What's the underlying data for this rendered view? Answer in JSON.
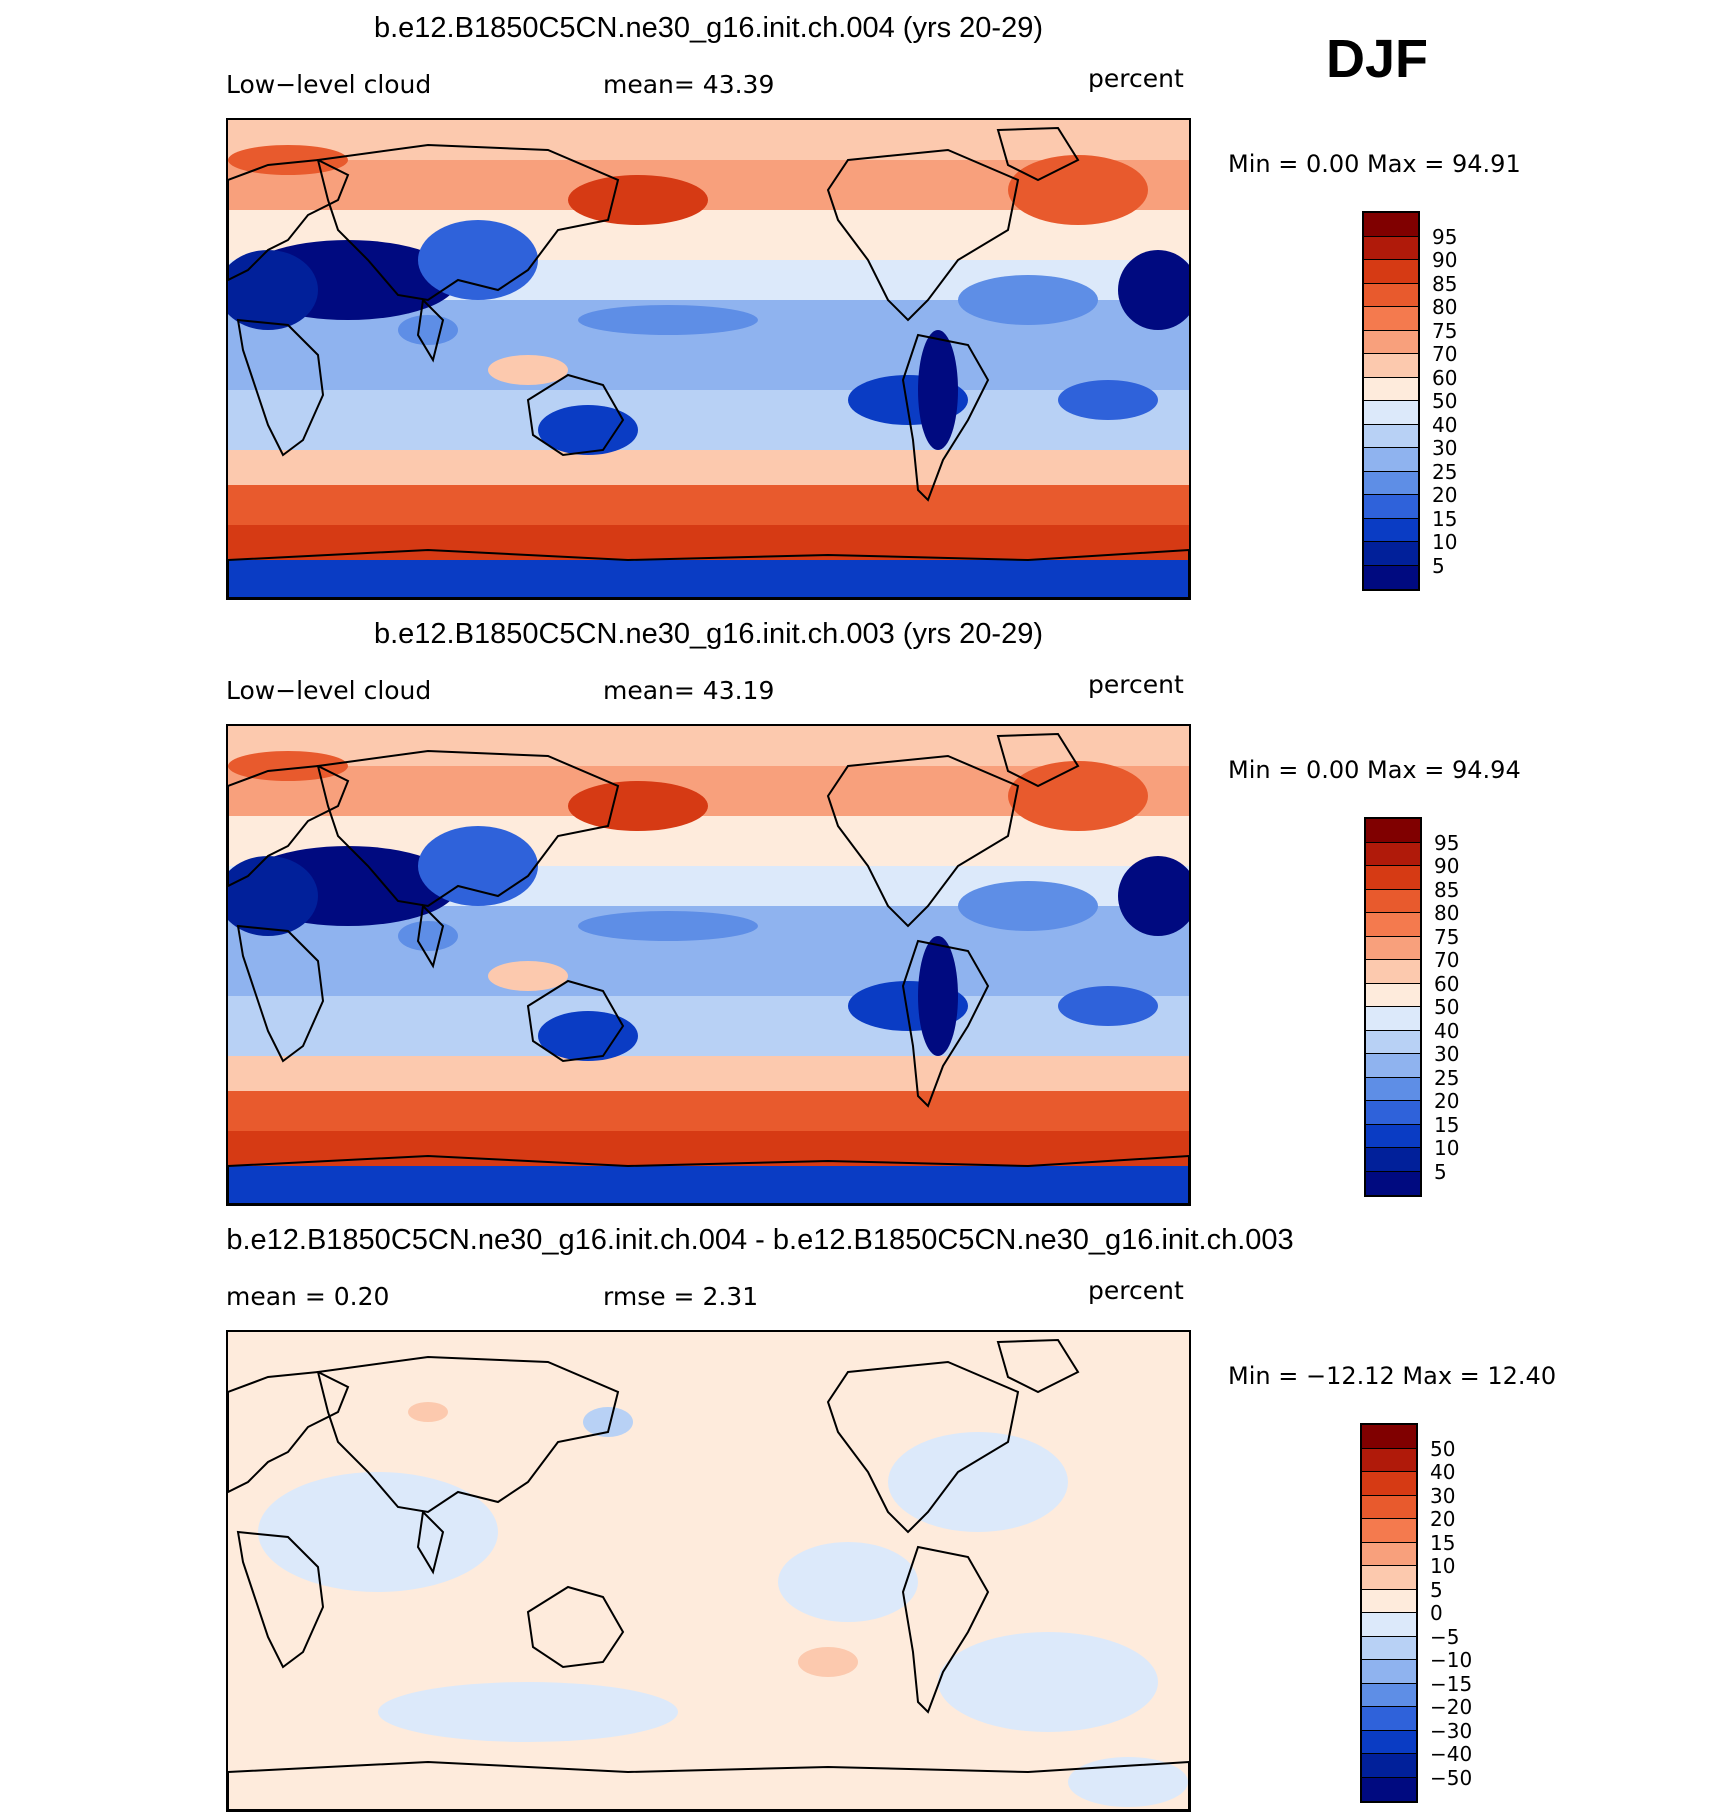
{
  "season": "DJF",
  "panels": [
    {
      "title": "b.e12.B1850C5CN.ne30_g16.init.ch.004 (yrs 20-29)",
      "left_label": "Low−level cloud",
      "center_label": "mean=   43.39",
      "units": "percent",
      "minmax": "Min =     0.00  Max =    94.91",
      "kind": "field",
      "colorbar_labels": [
        "95",
        "90",
        "85",
        "80",
        "75",
        "70",
        "60",
        "50",
        "40",
        "30",
        "25",
        "20",
        "15",
        "10",
        "5"
      ],
      "colorbar_colors": [
        "#800000",
        "#B01A0A",
        "#D63A14",
        "#E85A2D",
        "#F47A4E",
        "#F8A07C",
        "#FCC9AE",
        "#FEEBDC",
        "#DCE9FA",
        "#B8D1F5",
        "#8FB3EF",
        "#5E8EE6",
        "#2F62DA",
        "#0A3CC4",
        "#01209A",
        "#000A80"
      ]
    },
    {
      "title": "b.e12.B1850C5CN.ne30_g16.init.ch.003 (yrs 20-29)",
      "left_label": "Low−level cloud",
      "center_label": "mean=   43.19",
      "units": "percent",
      "minmax": "Min =     0.00  Max =    94.94",
      "kind": "field",
      "colorbar_labels": [
        "95",
        "90",
        "85",
        "80",
        "75",
        "70",
        "60",
        "50",
        "40",
        "30",
        "25",
        "20",
        "15",
        "10",
        "5"
      ],
      "colorbar_colors": [
        "#800000",
        "#B01A0A",
        "#D63A14",
        "#E85A2D",
        "#F47A4E",
        "#F8A07C",
        "#FCC9AE",
        "#FEEBDC",
        "#DCE9FA",
        "#B8D1F5",
        "#8FB3EF",
        "#5E8EE6",
        "#2F62DA",
        "#0A3CC4",
        "#01209A",
        "#000A80"
      ]
    },
    {
      "title": "b.e12.B1850C5CN.ne30_g16.init.ch.004 - b.e12.B1850C5CN.ne30_g16.init.ch.003",
      "left_label": "mean =    0.20",
      "center_label": "rmse =    2.31",
      "units": "percent",
      "minmax": "Min = −12.12  Max =   12.40",
      "kind": "diff",
      "colorbar_labels": [
        "50",
        "40",
        "30",
        "20",
        "15",
        "10",
        "5",
        "0",
        "−5",
        "−10",
        "−15",
        "−20",
        "−30",
        "−40",
        "−50"
      ],
      "colorbar_colors": [
        "#800000",
        "#B01A0A",
        "#D63A14",
        "#E85A2D",
        "#F47A4E",
        "#F8A07C",
        "#FCC9AE",
        "#FEEBDC",
        "#DCE9FA",
        "#B8D1F5",
        "#8FB3EF",
        "#5E8EE6",
        "#2F62DA",
        "#0A3CC4",
        "#01209A",
        "#000A80"
      ]
    }
  ]
}
